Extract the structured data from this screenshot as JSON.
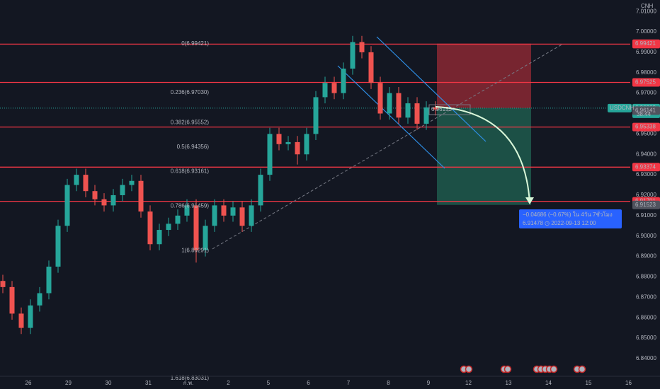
{
  "chart_data": {
    "type": "candlestick",
    "currency": "CNH",
    "symbol": "USDCNH",
    "countdown": "38:44",
    "up_color": "#26a69a",
    "down_color": "#ef5350",
    "ylim": [
      6.832,
      7.0156
    ],
    "yticks": [
      {
        "value": 6.84,
        "label": "6.84000"
      },
      {
        "value": 6.85,
        "label": "6.85000"
      },
      {
        "value": 6.86,
        "label": "6.86000"
      },
      {
        "value": 6.87,
        "label": "6.87000"
      },
      {
        "value": 6.88,
        "label": "6.88000"
      },
      {
        "value": 6.89,
        "label": "6.89000"
      },
      {
        "value": 6.9,
        "label": "6.90000"
      },
      {
        "value": 6.91,
        "label": "6.91000"
      },
      {
        "value": 6.92,
        "label": "6.92000"
      },
      {
        "value": 6.93,
        "label": "6.93000"
      },
      {
        "value": 6.94,
        "label": "6.94000"
      },
      {
        "value": 6.95,
        "label": "6.95000"
      },
      {
        "value": 6.96,
        "label": "6.96000"
      },
      {
        "value": 6.97,
        "label": "6.97000"
      },
      {
        "value": 6.98,
        "label": "6.98000"
      },
      {
        "value": 6.99,
        "label": "6.99000"
      },
      {
        "value": 7.0,
        "label": "7.00000"
      },
      {
        "value": 7.01,
        "label": "7.01000"
      }
    ],
    "categories": [
      "26",
      "29",
      "30",
      "31",
      "ก.พ.",
      "2",
      "5",
      "6",
      "7",
      "8",
      "9",
      "12",
      "13",
      "14",
      "15",
      "16"
    ],
    "ohlc": [
      [
        6.878,
        6.881,
        6.872,
        6.875
      ],
      [
        6.875,
        6.878,
        6.859,
        6.862
      ],
      [
        6.862,
        6.865,
        6.852,
        6.855
      ],
      [
        6.855,
        6.869,
        6.852,
        6.866
      ],
      [
        6.866,
        6.875,
        6.863,
        6.872
      ],
      [
        6.872,
        6.888,
        6.869,
        6.885
      ],
      [
        6.885,
        6.908,
        6.882,
        6.905
      ],
      [
        6.905,
        6.928,
        6.902,
        6.925
      ],
      [
        6.925,
        6.933,
        6.922,
        6.93
      ],
      [
        6.93,
        6.933,
        6.919,
        6.922
      ],
      [
        6.922,
        6.925,
        6.915,
        6.918
      ],
      [
        6.918,
        6.921,
        6.912,
        6.915
      ],
      [
        6.915,
        6.923,
        6.912,
        6.92
      ],
      [
        6.92,
        6.928,
        6.917,
        6.925
      ],
      [
        6.925,
        6.93,
        6.922,
        6.927
      ],
      [
        6.927,
        6.93,
        6.909,
        6.912
      ],
      [
        6.912,
        6.915,
        6.893,
        6.896
      ],
      [
        6.896,
        6.906,
        6.893,
        6.903
      ],
      [
        6.903,
        6.909,
        6.9,
        6.906
      ],
      [
        6.906,
        6.913,
        6.903,
        6.91
      ],
      [
        6.91,
        6.918,
        6.907,
        6.915
      ],
      [
        6.915,
        6.918,
        6.887,
        6.893
      ],
      [
        6.893,
        6.908,
        6.89,
        6.905
      ],
      [
        6.905,
        6.918,
        6.902,
        6.915
      ],
      [
        6.915,
        6.918,
        6.907,
        6.91
      ],
      [
        6.91,
        6.917,
        6.907,
        6.914
      ],
      [
        6.914,
        6.917,
        6.902,
        6.905
      ],
      [
        6.905,
        6.918,
        6.902,
        6.915
      ],
      [
        6.915,
        6.933,
        6.912,
        6.93
      ],
      [
        6.93,
        6.953,
        6.927,
        6.95
      ],
      [
        6.95,
        6.953,
        6.942,
        6.945
      ],
      [
        6.945,
        6.949,
        6.942,
        6.946
      ],
      [
        6.946,
        6.949,
        6.935,
        6.94
      ],
      [
        6.94,
        6.953,
        6.937,
        6.95
      ],
      [
        6.95,
        6.971,
        6.947,
        6.968
      ],
      [
        6.968,
        6.978,
        6.965,
        6.975
      ],
      [
        6.975,
        6.978,
        6.967,
        6.97
      ],
      [
        6.97,
        6.985,
        6.967,
        6.982
      ],
      [
        6.982,
        6.998,
        6.979,
        6.995
      ],
      [
        6.995,
        6.998,
        6.987,
        6.99
      ],
      [
        6.99,
        6.993,
        6.972,
        6.975
      ],
      [
        6.975,
        6.978,
        6.957,
        6.96
      ],
      [
        6.96,
        6.973,
        6.957,
        6.97
      ],
      [
        6.97,
        6.973,
        6.955,
        6.958
      ],
      [
        6.958,
        6.968,
        6.955,
        6.965
      ],
      [
        6.965,
        6.968,
        6.952,
        6.955
      ],
      [
        6.955,
        6.966,
        6.952,
        6.963
      ],
      [
        6.963,
        6.966,
        6.959,
        6.962
      ]
    ],
    "fib_levels": [
      {
        "label": "0(6.99421)",
        "value": 6.99421,
        "color": "#5a2a31",
        "text_color": "#787b86"
      },
      {
        "label": "0.236(6.97030)",
        "value": 6.9703,
        "color": "#2c3b30",
        "text_color": "#e04f5f"
      },
      {
        "label": "0.382(6.95552)",
        "value": 6.95552,
        "color": "#2f4a2a",
        "text_color": "#8bbf6a"
      },
      {
        "label": "0.5(6.94356)",
        "value": 6.94356,
        "color": "#1d4a3a",
        "text_color": "#4caf50"
      },
      {
        "label": "0.618(6.93161)",
        "value": 6.93161,
        "color": "#243a4a",
        "text_color": "#26a69a"
      },
      {
        "label": "0.786(6.91459)",
        "value": 6.91459,
        "color": "#2a2e39",
        "text_color": "#7e8cad"
      },
      {
        "label": "1(6.89291)",
        "value": 6.89291,
        "color": "#1b2e5e",
        "text_color": "#787b86"
      },
      {
        "label": "1.618(6.83031)",
        "value": 6.83031,
        "text_color": "#2962ff"
      }
    ],
    "levels": [
      6.99399,
      6.97525,
      6.95338,
      6.93374,
      6.91701
    ],
    "level_color": "#f23645",
    "price_tags": [
      {
        "value": 6.99421,
        "color": "#f23645"
      },
      {
        "value": 6.96263,
        "color": "#26a69a"
      },
      {
        "value": 6.96141,
        "color": "#50535e"
      },
      {
        "value": 6.91523,
        "color": "#50535e"
      }
    ],
    "last_trade": 6.96153,
    "projection": {
      "change": "−0.04686 (−0.67%) ใน 4วัน 7ชั่วโมง",
      "detail": "6.91478 ◷ 2022-09-13  12:00",
      "target": 6.91478
    }
  }
}
